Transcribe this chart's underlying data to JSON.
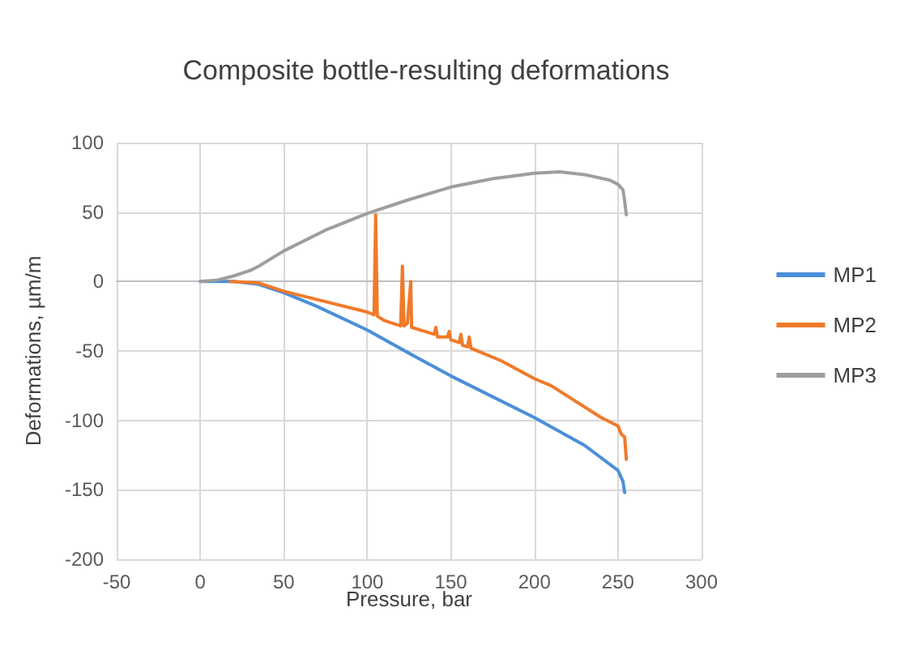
{
  "chart_data": {
    "type": "line",
    "title": "Composite bottle-resulting deformations",
    "xlabel": "Pressure, bar",
    "ylabel": "Deformations, µm/m",
    "xlim": [
      -50,
      300
    ],
    "xticks": [
      -50,
      0,
      50,
      100,
      150,
      200,
      250,
      300
    ],
    "ylim": [
      -200,
      100
    ],
    "yticks": [
      -200,
      -150,
      -100,
      -50,
      0,
      50,
      100
    ],
    "grid": true,
    "legend": "right",
    "marker": "none",
    "line_style": "solid",
    "series": [
      {
        "name": "MP1",
        "color": "#4a8fd8",
        "x": [
          0,
          20,
          35,
          50,
          70,
          100,
          130,
          150,
          200,
          230,
          250,
          253,
          254
        ],
        "values": [
          0,
          0,
          -2,
          -8,
          -18,
          -35,
          -55,
          -68,
          -98,
          -118,
          -136,
          -144,
          -152
        ]
      },
      {
        "name": "MP2",
        "color": "#f07a2a",
        "x": [
          18,
          35,
          50,
          70,
          100,
          104,
          105,
          106,
          110,
          120,
          121,
          122,
          124,
          126,
          126.5,
          127,
          140,
          141,
          142,
          148,
          149,
          150,
          155,
          156,
          157,
          160,
          161,
          162,
          180,
          200,
          210,
          240,
          250,
          252,
          254,
          255
        ],
        "values": [
          0,
          -1,
          -7,
          -13,
          -22,
          -24,
          48,
          -25,
          -28,
          -32,
          11,
          -32,
          -30,
          0,
          -33,
          -33,
          -38,
          -33,
          -40,
          -40,
          -36,
          -42,
          -44,
          -38,
          -46,
          -47,
          -40,
          -48,
          -57,
          -70,
          -75,
          -98,
          -104,
          -110,
          -112,
          -128
        ]
      },
      {
        "name": "MP3",
        "color": "#9e9e9e",
        "x": [
          0,
          10,
          20,
          30,
          35,
          50,
          75,
          100,
          125,
          150,
          175,
          200,
          215,
          230,
          245,
          250,
          253,
          254,
          255
        ],
        "values": [
          0,
          1,
          4,
          8,
          11,
          22,
          37,
          49,
          59,
          68,
          74,
          78,
          79,
          77,
          73,
          70,
          66,
          58,
          48
        ]
      }
    ]
  }
}
